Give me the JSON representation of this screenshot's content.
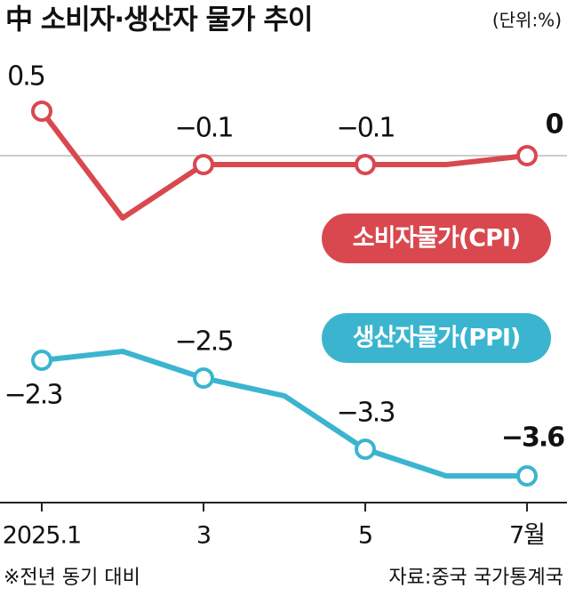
{
  "chart_data": {
    "type": "line",
    "title": "中 소비자·생산자 물가 추이",
    "unit": "(단위:%)",
    "categories": [
      "2025.1",
      null,
      "3",
      null,
      "5",
      null,
      "7월"
    ],
    "series": [
      {
        "name": "소비자물가(CPI)",
        "color": "#d9484f",
        "values": [
          0.5,
          -0.7,
          -0.1,
          -0.1,
          -0.1,
          -0.1,
          0
        ],
        "value_labels": [
          "0.5",
          null,
          "−0.1",
          null,
          "−0.1",
          null,
          "0"
        ]
      },
      {
        "name": "생산자물가(PPI)",
        "color": "#3bb5cf",
        "values": [
          -2.3,
          -2.2,
          -2.5,
          -2.7,
          -3.3,
          -3.6,
          -3.6
        ],
        "value_labels": [
          "−2.3",
          null,
          "−2.5",
          null,
          "−3.3",
          null,
          "−3.6"
        ]
      }
    ],
    "ylim": [
      -3.9,
      0.9
    ],
    "reference_line": 0,
    "notes": [
      "※전년 동기 대비",
      "자료:중국 국가통계국"
    ]
  }
}
